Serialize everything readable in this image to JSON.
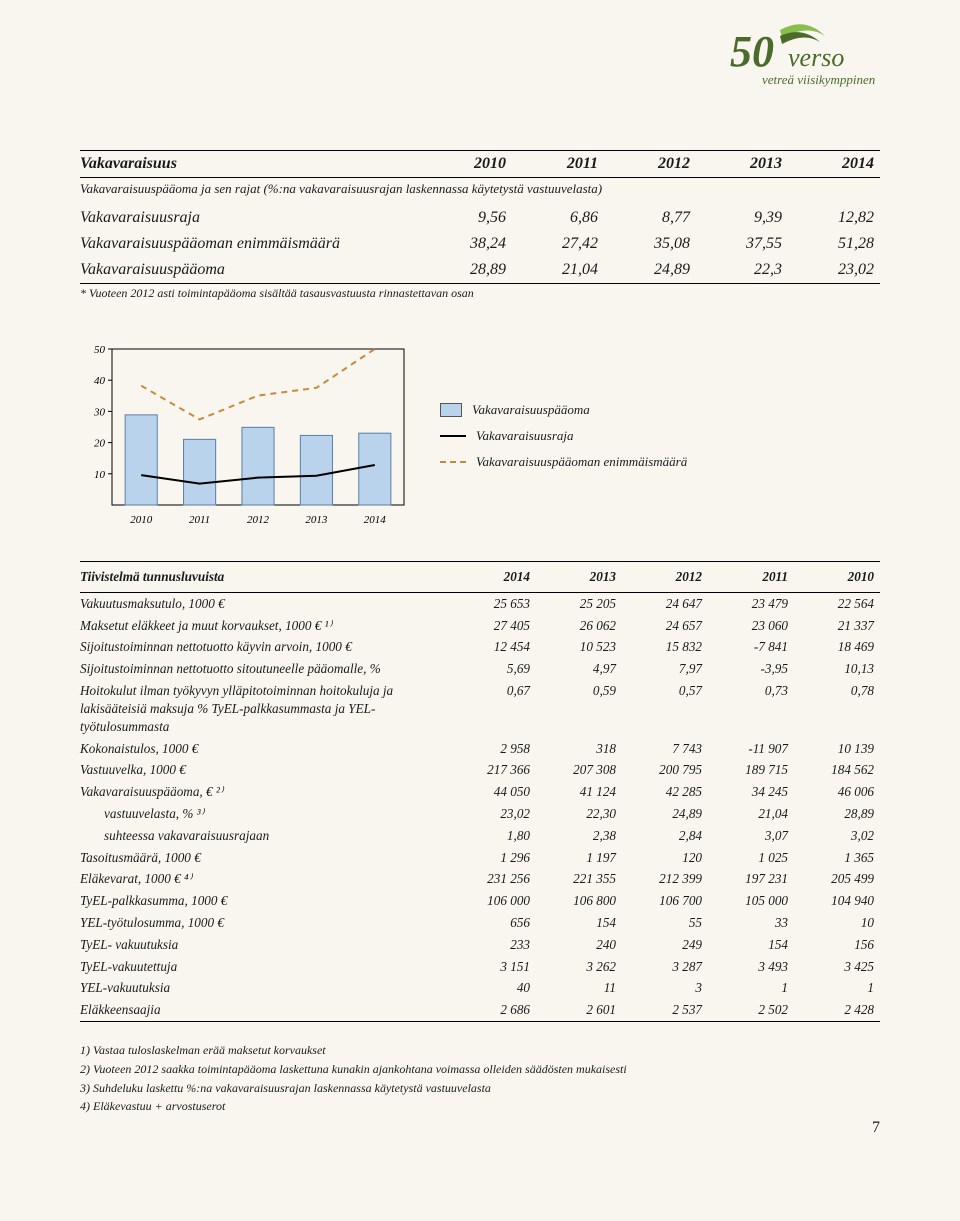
{
  "logo": {
    "brand": "verso",
    "tagline": "vetreä viisikymppinen",
    "fifty": "50",
    "color_dark": "#4a6b2a",
    "color_light": "#8bbf4d"
  },
  "table1": {
    "title": "Vakavaraisuus",
    "years": [
      "2010",
      "2011",
      "2012",
      "2013",
      "2014"
    ],
    "sub_caption": "Vakavaraisuuspääoma ja sen rajat (%:na vakavaraisuusrajan laskennassa käytetystä vastuuvelasta)",
    "rows": [
      {
        "label": "Vakavaraisuusraja",
        "v": [
          "9,56",
          "6,86",
          "8,77",
          "9,39",
          "12,82"
        ]
      },
      {
        "label": "Vakavaraisuuspääoman enimmäismäärä",
        "v": [
          "38,24",
          "27,42",
          "35,08",
          "37,55",
          "51,28"
        ]
      },
      {
        "label": "Vakavaraisuuspääoma",
        "v": [
          "28,89",
          "21,04",
          "24,89",
          "22,3",
          "23,02"
        ]
      }
    ],
    "footnote": "* Vuoteen 2012 asti toimintapääoma sisältää tasausvastuusta rinnastettavan osan"
  },
  "chart": {
    "type": "bar+line",
    "categories": [
      "2010",
      "2011",
      "2012",
      "2013",
      "2014"
    ],
    "ylim": [
      0,
      50
    ],
    "yticks": [
      10,
      20,
      30,
      40,
      50
    ],
    "bar_values": [
      28.89,
      21.04,
      24.89,
      22.3,
      23.02
    ],
    "line_values": [
      9.56,
      6.86,
      8.77,
      9.39,
      12.82
    ],
    "dash_values": [
      38.24,
      27.42,
      35.08,
      37.55,
      51.28
    ],
    "bar_fill": "#b9d3ed",
    "bar_stroke": "#5a7fa6",
    "line_color": "#000000",
    "dash_color": "#c78a3a",
    "axis_color": "#000000",
    "tick_fontsize": 11,
    "legend": [
      {
        "key": "box",
        "label": "Vakavaraisuuspääoma"
      },
      {
        "key": "line",
        "label": "Vakavaraisuusraja"
      },
      {
        "key": "dash",
        "label": "Vakavaraisuuspääoman enimmäismäärä"
      }
    ]
  },
  "table2": {
    "title": "Tiivistelmä tunnusluvuista",
    "years": [
      "2014",
      "2013",
      "2012",
      "2011",
      "2010"
    ],
    "rows": [
      {
        "label": "Vakuutusmaksutulo, 1000 €",
        "v": [
          "25 653",
          "25 205",
          "24 647",
          "23 479",
          "22 564"
        ]
      },
      {
        "label": "Maksetut eläkkeet ja muut korvaukset, 1000 € ¹⁾",
        "v": [
          "27 405",
          "26 062",
          "24 657",
          "23 060",
          "21 337"
        ]
      },
      {
        "label": "Sijoitustoiminnan nettotuotto käyvin arvoin, 1000 €",
        "v": [
          "12 454",
          "10 523",
          "15 832",
          "-7 841",
          "18 469"
        ]
      },
      {
        "label": "Sijoitustoiminnan nettotuotto sitoutuneelle pääomalle, %",
        "v": [
          "5,69",
          "4,97",
          "7,97",
          "-3,95",
          "10,13"
        ]
      },
      {
        "label": "Hoitokulut ilman työkyvyn ylläpitotoiminnan hoitokuluja ja lakisääteisiä maksuja % TyEL-palkkasummasta ja YEL-työtulosummasta",
        "v": [
          "0,67",
          "0,59",
          "0,57",
          "0,73",
          "0,78"
        ]
      },
      {
        "label": "Kokonaistulos, 1000 €",
        "v": [
          "2 958",
          "318",
          "7 743",
          "-11 907",
          "10 139"
        ]
      },
      {
        "label": "Vastuuvelka, 1000 €",
        "v": [
          "217 366",
          "207 308",
          "200 795",
          "189 715",
          "184 562"
        ]
      },
      {
        "label": "Vakavaraisuuspääoma, € ²⁾",
        "v": [
          "44 050",
          "41 124",
          "42 285",
          "34 245",
          "46 006"
        ]
      },
      {
        "label": "vastuuvelasta, % ³⁾",
        "indent": true,
        "v": [
          "23,02",
          "22,30",
          "24,89",
          "21,04",
          "28,89"
        ]
      },
      {
        "label": "suhteessa vakavaraisuusrajaan",
        "indent": true,
        "v": [
          "1,80",
          "2,38",
          "2,84",
          "3,07",
          "3,02"
        ]
      },
      {
        "label": "Tasoitusmäärä, 1000 €",
        "v": [
          "1 296",
          "1 197",
          "120",
          "1 025",
          "1 365"
        ]
      },
      {
        "label": "Eläkevarat, 1000 € ⁴⁾",
        "v": [
          "231 256",
          "221 355",
          "212 399",
          "197 231",
          "205 499"
        ]
      },
      {
        "label": "TyEL-palkkasumma, 1000 €",
        "v": [
          "106 000",
          "106 800",
          "106 700",
          "105 000",
          "104 940"
        ]
      },
      {
        "label": "YEL-työtulosumma, 1000 €",
        "v": [
          "656",
          "154",
          "55",
          "33",
          "10"
        ]
      },
      {
        "label": "TyEL- vakuutuksia",
        "v": [
          "233",
          "240",
          "249",
          "154",
          "156"
        ]
      },
      {
        "label": "TyEL-vakuutettuja",
        "v": [
          "3 151",
          "3 262",
          "3 287",
          "3 493",
          "3 425"
        ]
      },
      {
        "label": "YEL-vakuutuksia",
        "v": [
          "40",
          "11",
          "3",
          "1",
          "1"
        ]
      },
      {
        "label": "Eläkkeensaajia",
        "v": [
          "2 686",
          "2 601",
          "2 537",
          "2 502",
          "2 428"
        ]
      }
    ],
    "footnotes": [
      "1) Vastaa tuloslaskelman erää maksetut korvaukset",
      "2) Vuoteen 2012 saakka toimintapääoma laskettuna kunakin ajankohtana voimassa olleiden säädösten mukaisesti",
      "3) Suhdeluku laskettu %:na vakavaraisuusrajan laskennassa käytetystä vastuuvelasta",
      "4) Eläkevastuu + arvostuserot"
    ]
  },
  "page_number": "7"
}
